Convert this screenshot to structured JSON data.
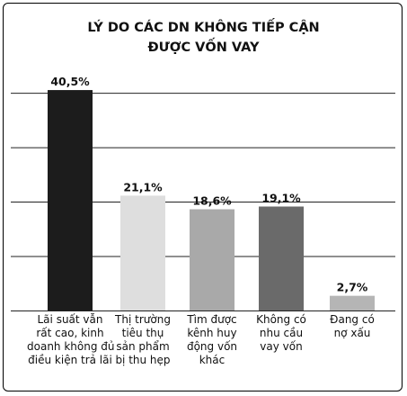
{
  "chart_data": {
    "type": "bar",
    "title_lines": [
      "LÝ DO CÁC DN KHÔNG TIẾP CẬN",
      "ĐƯỢC VỐN VAY"
    ],
    "categories": [
      [
        "Lãi suất vẫn",
        "rất cao, kinh",
        "doanh không đủ",
        "điều kiện trả lãi"
      ],
      [
        "Thị trường",
        "tiêu thụ",
        "sản phẩm",
        "bị thu hẹp"
      ],
      [
        "Tìm được",
        "kênh huy",
        "động vốn",
        "khác"
      ],
      [
        "Không có",
        "nhu cầu",
        "vay vốn"
      ],
      [
        "Đang có",
        "nợ xấu"
      ]
    ],
    "values": [
      40.5,
      21.1,
      18.6,
      19.1,
      2.7
    ],
    "value_labels": [
      "40,5%",
      "21,1%",
      "18,6%",
      "19,1%",
      "2,7%"
    ],
    "bar_colors": [
      "#1c1c1c",
      "#dedede",
      "#a9a9a9",
      "#6a6a6a",
      "#b5b5b5"
    ],
    "ylim": [
      0,
      42
    ],
    "grid": true,
    "gridline_values": [
      10,
      20,
      30,
      40
    ]
  }
}
